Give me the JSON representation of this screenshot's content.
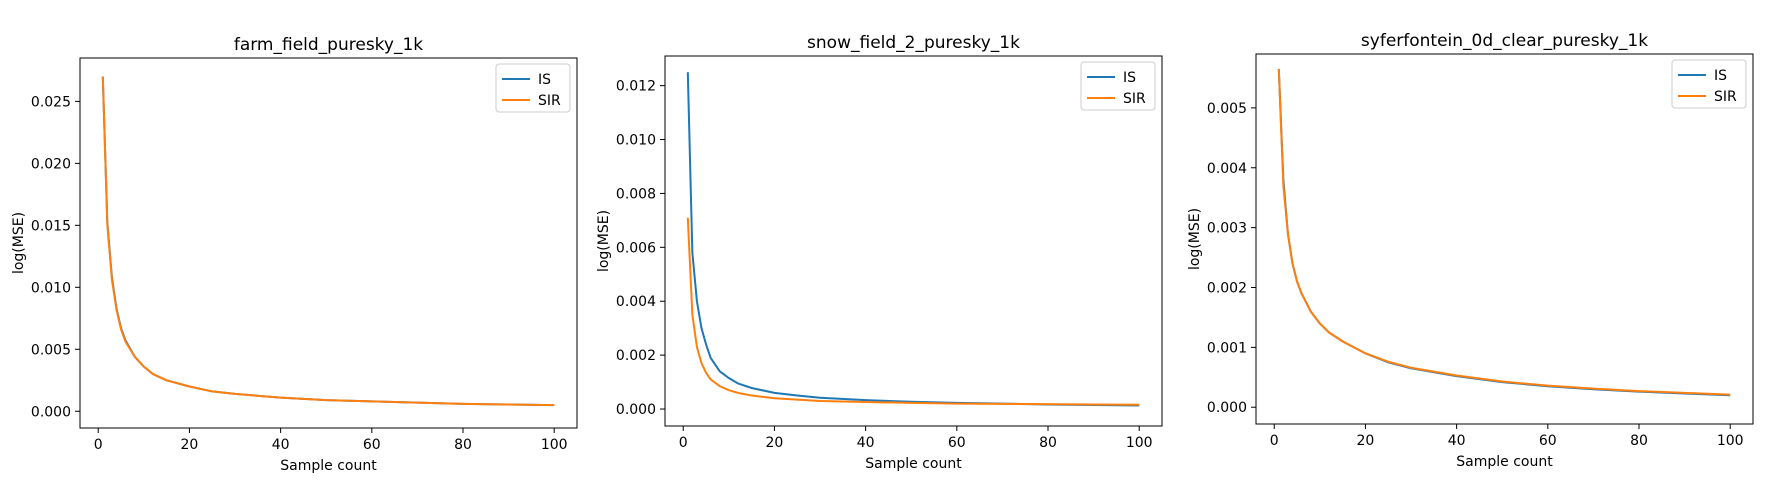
{
  "chart_data": [
    {
      "type": "line",
      "title": "farm_field_puresky_1k",
      "xlabel": "Sample count",
      "ylabel": "log(MSE)",
      "xlim": [
        -4,
        105
      ],
      "ylim": [
        -0.00135,
        0.0285
      ],
      "xticks": [
        0,
        20,
        40,
        60,
        80,
        100
      ],
      "yticks": [
        0.0,
        0.005,
        0.01,
        0.015,
        0.02,
        0.025
      ],
      "ytick_labels": [
        "0.000",
        "0.005",
        "0.010",
        "0.015",
        "0.020",
        "0.025"
      ],
      "legend": "top-right",
      "grid": false,
      "x": [
        1,
        2,
        3,
        4,
        5,
        6,
        8,
        10,
        12,
        15,
        20,
        25,
        30,
        40,
        50,
        60,
        70,
        80,
        90,
        100
      ],
      "series": [
        {
          "name": "IS",
          "color": "#1f77b4",
          "values": [
            0.027,
            0.0152,
            0.0108,
            0.0083,
            0.0067,
            0.0057,
            0.0044,
            0.0036,
            0.003,
            0.0025,
            0.002,
            0.0016,
            0.0014,
            0.0011,
            0.0009,
            0.0008,
            0.0007,
            0.0006,
            0.00055,
            0.0005
          ]
        },
        {
          "name": "SIR",
          "color": "#ff7f0e",
          "values": [
            0.027,
            0.015,
            0.0106,
            0.0082,
            0.0066,
            0.0056,
            0.0044,
            0.0036,
            0.003,
            0.0025,
            0.002,
            0.0016,
            0.0014,
            0.0011,
            0.0009,
            0.0008,
            0.0007,
            0.0006,
            0.00055,
            0.0005
          ]
        }
      ]
    },
    {
      "type": "line",
      "title": "snow_field_2_puresky_1k",
      "xlabel": "Sample count",
      "ylabel": "log(MSE)",
      "xlim": [
        -4,
        105
      ],
      "ylim": [
        -0.00063,
        0.0131
      ],
      "xticks": [
        0,
        20,
        40,
        60,
        80,
        100
      ],
      "yticks": [
        0.0,
        0.002,
        0.004,
        0.006,
        0.008,
        0.01,
        0.012
      ],
      "ytick_labels": [
        "0.000",
        "0.002",
        "0.004",
        "0.006",
        "0.008",
        "0.010",
        "0.012"
      ],
      "legend": "top-right",
      "grid": false,
      "x": [
        1,
        2,
        3,
        4,
        5,
        6,
        8,
        10,
        12,
        15,
        20,
        25,
        30,
        40,
        50,
        60,
        70,
        80,
        90,
        100
      ],
      "series": [
        {
          "name": "IS",
          "color": "#1f77b4",
          "values": [
            0.0125,
            0.0058,
            0.004,
            0.003,
            0.0024,
            0.0019,
            0.0014,
            0.00115,
            0.00095,
            0.00078,
            0.0006,
            0.0005,
            0.00042,
            0.00033,
            0.00027,
            0.00023,
            0.0002,
            0.00017,
            0.00015,
            0.00013
          ]
        },
        {
          "name": "SIR",
          "color": "#ff7f0e",
          "values": [
            0.0071,
            0.0035,
            0.0023,
            0.0017,
            0.00135,
            0.0011,
            0.00085,
            0.0007,
            0.0006,
            0.0005,
            0.0004,
            0.00035,
            0.0003,
            0.00026,
            0.00023,
            0.0002,
            0.00019,
            0.00018,
            0.00017,
            0.00016
          ]
        }
      ]
    },
    {
      "type": "line",
      "title": "syferfontein_0d_clear_puresky_1k",
      "xlabel": "Sample count",
      "ylabel": "log(MSE)",
      "xlim": [
        -4,
        105
      ],
      "ylim": [
        -0.00028,
        0.0059
      ],
      "xticks": [
        0,
        20,
        40,
        60,
        80,
        100
      ],
      "yticks": [
        0.0,
        0.001,
        0.002,
        0.003,
        0.004,
        0.005
      ],
      "ytick_labels": [
        "0.000",
        "0.001",
        "0.002",
        "0.003",
        "0.004",
        "0.005"
      ],
      "legend": "top-right",
      "grid": false,
      "x": [
        1,
        2,
        3,
        4,
        5,
        6,
        8,
        10,
        12,
        15,
        20,
        25,
        30,
        40,
        50,
        60,
        70,
        80,
        90,
        100
      ],
      "series": [
        {
          "name": "IS",
          "color": "#1f77b4",
          "values": [
            0.00565,
            0.0038,
            0.0029,
            0.0024,
            0.0021,
            0.0019,
            0.0016,
            0.0014,
            0.00125,
            0.0011,
            0.0009,
            0.00075,
            0.00065,
            0.00052,
            0.00042,
            0.00035,
            0.0003,
            0.00026,
            0.00023,
            0.0002
          ]
        },
        {
          "name": "SIR",
          "color": "#ff7f0e",
          "values": [
            0.00565,
            0.0037,
            0.0029,
            0.0024,
            0.0021,
            0.0019,
            0.0016,
            0.0014,
            0.00125,
            0.0011,
            0.0009,
            0.00076,
            0.00066,
            0.00053,
            0.00043,
            0.00036,
            0.00031,
            0.00027,
            0.00024,
            0.00021
          ]
        }
      ]
    }
  ]
}
